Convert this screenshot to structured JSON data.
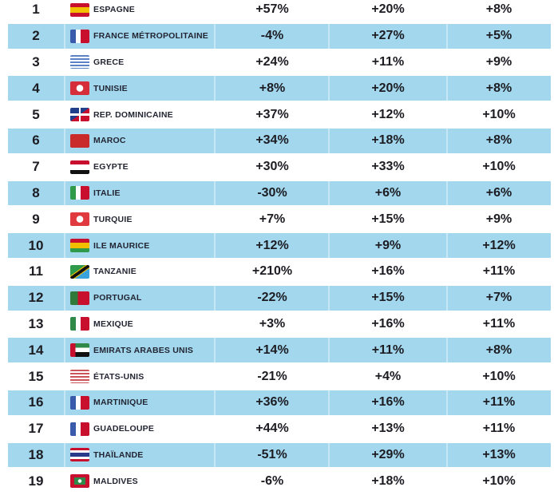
{
  "table": {
    "rows": [
      {
        "rank": "1",
        "country": "ESPAGNE",
        "flag": "spain-flag-icon",
        "flag_colors": [
          "#c8102e",
          "#f1bf00",
          "#c8102e"
        ],
        "flag_layout": "h3",
        "v1": "+57%",
        "v2": "+20%",
        "v3": "+8%"
      },
      {
        "rank": "2",
        "country": "FRANCE MÉTROPOLITAINE",
        "flag": "france-flag-icon",
        "flag_colors": [
          "#3a5bab",
          "#ffffff",
          "#c8102e"
        ],
        "flag_layout": "v3",
        "v1": "-4%",
        "v2": "+27%",
        "v3": "+5%"
      },
      {
        "rank": "3",
        "country": "GRECE",
        "flag": "greece-flag-icon",
        "flag_colors": [
          "#5b82c4",
          "#ffffff",
          "#5b82c4"
        ],
        "flag_layout": "stripes",
        "v1": "+24%",
        "v2": "+11%",
        "v3": "+9%"
      },
      {
        "rank": "4",
        "country": "TUNISIE",
        "flag": "tunisia-flag-icon",
        "flag_colors": [
          "#d62d3a",
          "#ffffff",
          "#d62d3a"
        ],
        "flag_layout": "dot",
        "v1": "+8%",
        "v2": "+20%",
        "v3": "+8%"
      },
      {
        "rank": "5",
        "country": "REP. DOMINICAINE",
        "flag": "dominican-republic-flag-icon",
        "flag_colors": [
          "#1f3f8a",
          "#ffffff",
          "#c8102e"
        ],
        "flag_layout": "quad",
        "v1": "+37%",
        "v2": "+12%",
        "v3": "+10%"
      },
      {
        "rank": "6",
        "country": "MAROC",
        "flag": "morocco-flag-icon",
        "flag_colors": [
          "#c92a2a",
          "#c92a2a",
          "#c92a2a"
        ],
        "flag_layout": "solid",
        "v1": "+34%",
        "v2": "+18%",
        "v3": "+8%"
      },
      {
        "rank": "7",
        "country": "EGYPTE",
        "flag": "egypt-flag-icon",
        "flag_colors": [
          "#c8102e",
          "#ffffff",
          "#111111"
        ],
        "flag_layout": "h3",
        "v1": "+30%",
        "v2": "+33%",
        "v3": "+10%"
      },
      {
        "rank": "8",
        "country": "ITALIE",
        "flag": "italy-flag-icon",
        "flag_colors": [
          "#2f9a4a",
          "#ffffff",
          "#c8102e"
        ],
        "flag_layout": "v3",
        "v1": "-30%",
        "v2": "+6%",
        "v3": "+6%"
      },
      {
        "rank": "9",
        "country": "TURQUIE",
        "flag": "turkey-flag-icon",
        "flag_colors": [
          "#e03a3e",
          "#ffffff",
          "#e03a3e"
        ],
        "flag_layout": "dot",
        "v1": "+7%",
        "v2": "+15%",
        "v3": "+9%"
      },
      {
        "rank": "10",
        "country": "ILE MAURICE",
        "flag": "mauritius-flag-icon",
        "flag_colors": [
          "#c8102e",
          "#f1bf00",
          "#2f9a4a"
        ],
        "flag_layout": "h3",
        "v1": "+12%",
        "v2": "+9%",
        "v3": "+12%"
      },
      {
        "rank": "11",
        "country": "TANZANIE",
        "flag": "tanzania-flag-icon",
        "flag_colors": [
          "#2f9a4a",
          "#111111",
          "#3aa3dd"
        ],
        "flag_layout": "diag",
        "v1": "+210%",
        "v2": "+16%",
        "v3": "+11%"
      },
      {
        "rank": "12",
        "country": "PORTUGAL",
        "flag": "portugal-flag-icon",
        "flag_colors": [
          "#2f7a3a",
          "#c8102e",
          "#c8102e"
        ],
        "flag_layout": "v2",
        "v1": "-22%",
        "v2": "+15%",
        "v3": "+7%"
      },
      {
        "rank": "13",
        "country": "MEXIQUE",
        "flag": "mexico-flag-icon",
        "flag_colors": [
          "#2f8a4a",
          "#ffffff",
          "#c8102e"
        ],
        "flag_layout": "v3",
        "v1": "+3%",
        "v2": "+16%",
        "v3": "+11%"
      },
      {
        "rank": "14",
        "country": "EMIRATS ARABES UNIS",
        "flag": "uae-flag-icon",
        "flag_colors": [
          "#2f8a4a",
          "#ffffff",
          "#111111"
        ],
        "flag_layout": "uae",
        "v1": "+14%",
        "v2": "+11%",
        "v3": "+8%"
      },
      {
        "rank": "15",
        "country": "ÉTATS-UNIS",
        "flag": "usa-flag-icon",
        "flag_colors": [
          "#c9545a",
          "#ffffff",
          "#5a6fa8"
        ],
        "flag_layout": "stripes",
        "v1": "-21%",
        "v2": "+4%",
        "v3": "+10%"
      },
      {
        "rank": "16",
        "country": "MARTINIQUE",
        "flag": "france-flag-icon",
        "flag_colors": [
          "#3a5bab",
          "#ffffff",
          "#c8102e"
        ],
        "flag_layout": "v3",
        "v1": "+36%",
        "v2": "+16%",
        "v3": "+11%"
      },
      {
        "rank": "17",
        "country": "GUADELOUPE",
        "flag": "france-flag-icon",
        "flag_colors": [
          "#3a5bab",
          "#ffffff",
          "#c8102e"
        ],
        "flag_layout": "v3",
        "v1": "+44%",
        "v2": "+13%",
        "v3": "+11%"
      },
      {
        "rank": "18",
        "country": "THAÏLANDE",
        "flag": "thailand-flag-icon",
        "flag_colors": [
          "#c8102e",
          "#ffffff",
          "#2a3a8a"
        ],
        "flag_layout": "thai",
        "v1": "-51%",
        "v2": "+29%",
        "v3": "+13%"
      },
      {
        "rank": "19",
        "country": "MALDIVES",
        "flag": "maldives-flag-icon",
        "flag_colors": [
          "#c8102e",
          "#2f8a4a",
          "#ffffff"
        ],
        "flag_layout": "inset",
        "v1": "-6%",
        "v2": "+18%",
        "v3": "+10%"
      }
    ]
  },
  "colors": {
    "stripe_row": "#a2d7ee",
    "text": "#1c1c22"
  }
}
